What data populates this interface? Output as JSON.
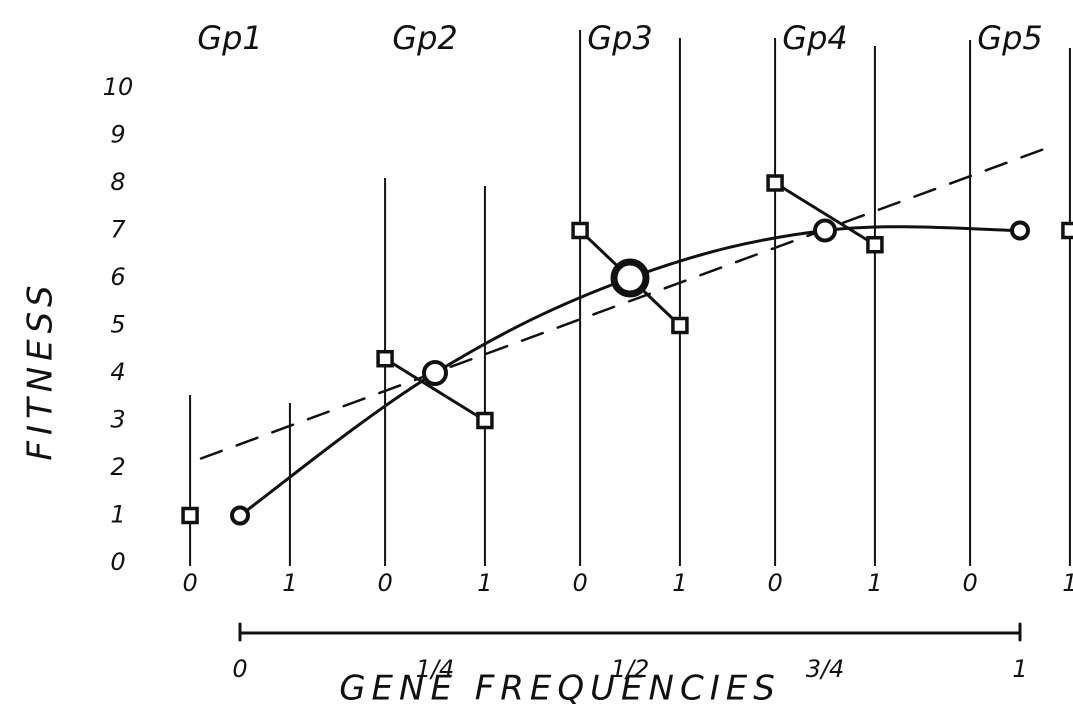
{
  "chart_data": {
    "type": "group-fitness",
    "y_label": "FITNESS",
    "x_label": "GENE FREQUENCIES",
    "ylim": [
      0,
      10
    ],
    "yticks": [
      0,
      1,
      2,
      3,
      4,
      5,
      6,
      7,
      8,
      9,
      10
    ],
    "xlim": [
      0,
      1
    ],
    "xticks": [
      0,
      {
        "value": 0.25,
        "label": "1/4"
      },
      {
        "value": 0.5,
        "label": "1/2"
      },
      {
        "value": 0.75,
        "label": "3/4"
      },
      1
    ],
    "local_ticks": [
      0,
      1
    ],
    "groups": [
      {
        "label": "Gp1",
        "genotype_fitness": [
          1,
          null
        ],
        "mean_fitness": 1
      },
      {
        "label": "Gp2",
        "genotype_fitness": [
          4.3,
          3
        ],
        "mean_fitness": 4
      },
      {
        "label": "Gp3",
        "genotype_fitness": [
          7,
          5
        ],
        "mean_fitness": 6
      },
      {
        "label": "Gp4",
        "genotype_fitness": [
          8,
          6.7
        ],
        "mean_fitness": 7
      },
      {
        "label": "Gp5",
        "genotype_fitness": [
          null,
          7
        ],
        "mean_fitness": 7
      }
    ],
    "dashed_line": {
      "x": [
        -0.05,
        1.045
      ],
      "y": [
        2.2,
        8.8
      ]
    }
  }
}
